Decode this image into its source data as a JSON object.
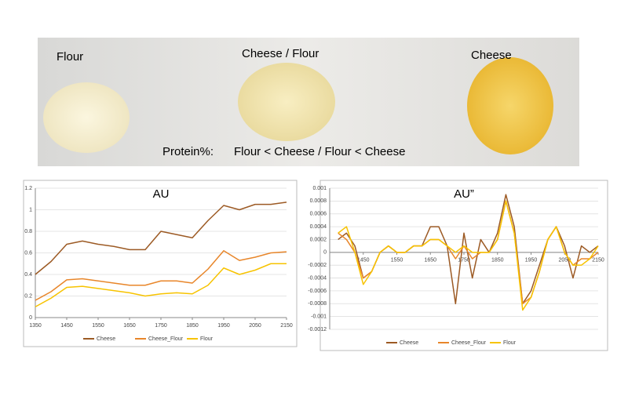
{
  "photo": {
    "labels": [
      "Flour",
      "Cheese / Flour",
      "Cheese"
    ],
    "caption_label": "Protein%:",
    "caption_text": "Flour < Cheese / Flour  < Cheese"
  },
  "chart_data": [
    {
      "type": "line",
      "title": "AU",
      "x": [
        1350,
        1400,
        1450,
        1500,
        1550,
        1600,
        1650,
        1700,
        1750,
        1800,
        1850,
        1900,
        1950,
        2000,
        2050,
        2100,
        2150
      ],
      "series": [
        {
          "name": "Cheese",
          "color": "#9c5a24",
          "values": [
            0.4,
            0.52,
            0.68,
            0.71,
            0.68,
            0.66,
            0.63,
            0.63,
            0.8,
            0.77,
            0.74,
            0.9,
            1.04,
            1.0,
            1.05,
            1.05,
            1.07
          ]
        },
        {
          "name": "Cheese_Flour",
          "color": "#e8862a",
          "values": [
            0.16,
            0.24,
            0.35,
            0.36,
            0.34,
            0.32,
            0.3,
            0.3,
            0.34,
            0.34,
            0.32,
            0.45,
            0.62,
            0.53,
            0.56,
            0.6,
            0.61
          ]
        },
        {
          "name": "Flour",
          "color": "#f7c300",
          "values": [
            0.1,
            0.18,
            0.28,
            0.29,
            0.27,
            0.25,
            0.23,
            0.2,
            0.22,
            0.23,
            0.22,
            0.3,
            0.46,
            0.4,
            0.44,
            0.5,
            0.5
          ]
        }
      ],
      "xlim": [
        1350,
        2150
      ],
      "xticks": [
        1350,
        1450,
        1550,
        1650,
        1750,
        1850,
        1950,
        2050,
        2150
      ],
      "ylim": [
        0,
        1.2
      ],
      "yticks": [
        0,
        0.2,
        0.4,
        0.6,
        0.8,
        1,
        1.2
      ],
      "grid": true,
      "legend": "bottom"
    },
    {
      "type": "line",
      "title": "AU”",
      "x": [
        1375,
        1400,
        1425,
        1450,
        1475,
        1500,
        1525,
        1550,
        1575,
        1600,
        1625,
        1650,
        1675,
        1700,
        1725,
        1750,
        1775,
        1800,
        1825,
        1850,
        1875,
        1900,
        1925,
        1950,
        1975,
        2000,
        2025,
        2050,
        2075,
        2100,
        2125,
        2150
      ],
      "series": [
        {
          "name": "Cheese",
          "color": "#9c5a24",
          "values": [
            0.0002,
            0.0003,
            0.0001,
            -0.0004,
            -0.0003,
            0,
            0.0001,
            0,
            0,
            0.0001,
            0.0001,
            0.0004,
            0.0004,
            0.0001,
            -0.0008,
            0.0003,
            -0.0004,
            0.0002,
            0,
            0.0003,
            0.0009,
            0.0004,
            -0.0008,
            -0.0006,
            -0.0002,
            0.0002,
            0.0004,
            0.0001,
            -0.0004,
            0.0001,
            0,
            0.0001
          ]
        },
        {
          "name": "Cheese_Flour",
          "color": "#e8862a",
          "values": [
            0.0003,
            0.0002,
            0,
            -0.0004,
            -0.0003,
            0,
            0.0001,
            0,
            0,
            0.0001,
            0.0001,
            0.0002,
            0.0002,
            0.0001,
            -0.0001,
            0.0001,
            -0.0001,
            0,
            0,
            0.0002,
            0.0008,
            0.0003,
            -0.0008,
            -0.0007,
            -0.0003,
            0.0002,
            0.0004,
            0,
            -0.0002,
            -0.0001,
            -0.0001,
            0
          ]
        },
        {
          "name": "Flour",
          "color": "#f7c300",
          "values": [
            0.0003,
            0.0004,
            0,
            -0.0005,
            -0.0003,
            0,
            0.0001,
            0,
            0,
            0.0001,
            0.0001,
            0.0002,
            0.0002,
            0.0001,
            0,
            0.0001,
            0,
            0,
            0,
            0.0002,
            0.0008,
            0.0003,
            -0.0009,
            -0.0007,
            -0.0003,
            0.0002,
            0.0004,
            0,
            -0.0002,
            -0.0002,
            -0.0001,
            0.0001
          ]
        }
      ],
      "xlim": [
        1350,
        2150
      ],
      "xticks": [
        1450,
        1550,
        1650,
        1750,
        1850,
        1950,
        2050,
        2150
      ],
      "ylim": [
        -0.0012,
        0.001
      ],
      "yticks": [
        -0.0012,
        -0.001,
        -0.0008,
        -0.0006,
        -0.0004,
        -0.0002,
        0,
        0.0002,
        0.0004,
        0.0006,
        0.0008,
        0.001
      ],
      "grid": true,
      "legend": "bottom"
    }
  ]
}
